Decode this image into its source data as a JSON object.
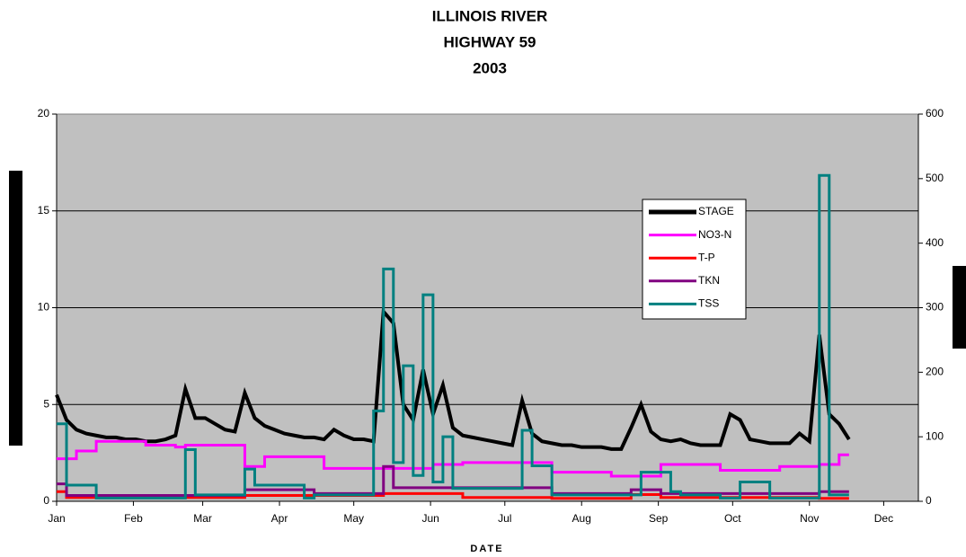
{
  "chart_data": {
    "type": "line",
    "title": [
      "ILLINOIS RIVER",
      "HIGHWAY 59",
      "2003"
    ],
    "xlabel": "DATE",
    "x": [
      0,
      4,
      8,
      12,
      16,
      20,
      24,
      28,
      32,
      36,
      40,
      44,
      48,
      52,
      56,
      60,
      64,
      68,
      72,
      76,
      80,
      84,
      88,
      92,
      96,
      100,
      104,
      108,
      112,
      116,
      120,
      124,
      128,
      132,
      136,
      140,
      144,
      148,
      152,
      156,
      160,
      164,
      168,
      172,
      176,
      180,
      184,
      188,
      192,
      196,
      200,
      204,
      208,
      212,
      216,
      220,
      224,
      228,
      232,
      236,
      240,
      244,
      248,
      252,
      256,
      260,
      264,
      268,
      272,
      276,
      280,
      284,
      288,
      292,
      296,
      300,
      304,
      308,
      312,
      316,
      320
    ],
    "xlim": [
      0,
      348
    ],
    "xticks": [
      {
        "value": 0,
        "label": "Jan"
      },
      {
        "value": 31,
        "label": "Feb"
      },
      {
        "value": 59,
        "label": "Mar"
      },
      {
        "value": 90,
        "label": "Apr"
      },
      {
        "value": 120,
        "label": "May"
      },
      {
        "value": 151,
        "label": "Jun"
      },
      {
        "value": 181,
        "label": "Jul"
      },
      {
        "value": 212,
        "label": "Aug"
      },
      {
        "value": 243,
        "label": "Sep"
      },
      {
        "value": 273,
        "label": "Oct"
      },
      {
        "value": 304,
        "label": "Nov"
      },
      {
        "value": 334,
        "label": "Dec"
      }
    ],
    "ylim": [
      0,
      20
    ],
    "yticks": [
      0,
      5,
      10,
      15,
      20
    ],
    "y2lim": [
      0,
      600
    ],
    "y2ticks": [
      0,
      100,
      200,
      300,
      400,
      500,
      600
    ],
    "grid": true,
    "series": [
      {
        "name": "STAGE",
        "color": "#000000",
        "step": false,
        "values": [
          5.5,
          4.2,
          3.7,
          3.5,
          3.4,
          3.3,
          3.3,
          3.2,
          3.2,
          3.1,
          3.1,
          3.2,
          3.4,
          5.8,
          4.3,
          4.3,
          4.0,
          3.7,
          3.6,
          5.6,
          4.3,
          3.9,
          3.7,
          3.5,
          3.4,
          3.3,
          3.3,
          3.2,
          3.7,
          3.4,
          3.2,
          3.2,
          3.1,
          9.8,
          9.2,
          5.0,
          4.2,
          6.8,
          4.5,
          6.0,
          3.8,
          3.4,
          3.3,
          3.2,
          3.1,
          3.0,
          2.9,
          5.2,
          3.5,
          3.1,
          3.0,
          2.9,
          2.9,
          2.8,
          2.8,
          2.8,
          2.7,
          2.7,
          3.8,
          5.0,
          3.6,
          3.2,
          3.1,
          3.2,
          3.0,
          2.9,
          2.9,
          2.9,
          4.5,
          4.2,
          3.2,
          3.1,
          3.0,
          3.0,
          3.0,
          3.5,
          3.1,
          8.6,
          4.5,
          4.0,
          3.2
        ]
      },
      {
        "name": "NO3-N",
        "color": "#ff00ff",
        "step": true,
        "values": [
          2.2,
          2.2,
          2.6,
          2.6,
          3.1,
          3.1,
          3.1,
          3.1,
          3.1,
          2.9,
          2.9,
          2.9,
          2.8,
          2.9,
          2.9,
          2.9,
          2.9,
          2.9,
          2.9,
          1.8,
          1.8,
          2.3,
          2.3,
          2.3,
          2.3,
          2.3,
          2.3,
          1.7,
          1.7,
          1.7,
          1.7,
          1.7,
          1.7,
          1.7,
          1.7,
          1.7,
          1.7,
          1.7,
          1.9,
          1.9,
          1.9,
          2.0,
          2.0,
          2.0,
          2.0,
          2.0,
          2.0,
          2.0,
          2.0,
          2.0,
          1.5,
          1.5,
          1.5,
          1.5,
          1.5,
          1.5,
          1.3,
          1.3,
          1.3,
          1.3,
          1.3,
          1.9,
          1.9,
          1.9,
          1.9,
          1.9,
          1.9,
          1.6,
          1.6,
          1.6,
          1.6,
          1.6,
          1.6,
          1.8,
          1.8,
          1.8,
          1.8,
          1.9,
          1.9,
          2.4,
          2.4
        ]
      },
      {
        "name": "T-P",
        "color": "#ff0000",
        "step": true,
        "values": [
          0.5,
          0.2,
          0.2,
          0.2,
          0.2,
          0.2,
          0.2,
          0.2,
          0.2,
          0.2,
          0.2,
          0.2,
          0.2,
          0.2,
          0.2,
          0.2,
          0.2,
          0.2,
          0.2,
          0.3,
          0.3,
          0.3,
          0.3,
          0.3,
          0.3,
          0.3,
          0.3,
          0.3,
          0.3,
          0.3,
          0.3,
          0.3,
          0.3,
          0.4,
          0.4,
          0.4,
          0.4,
          0.4,
          0.4,
          0.4,
          0.4,
          0.2,
          0.2,
          0.2,
          0.2,
          0.2,
          0.2,
          0.2,
          0.2,
          0.2,
          0.15,
          0.15,
          0.15,
          0.15,
          0.15,
          0.15,
          0.15,
          0.15,
          0.35,
          0.35,
          0.35,
          0.2,
          0.2,
          0.2,
          0.2,
          0.2,
          0.2,
          0.2,
          0.2,
          0.2,
          0.2,
          0.2,
          0.2,
          0.2,
          0.2,
          0.2,
          0.2,
          0.15,
          0.15,
          0.15,
          0.15
        ]
      },
      {
        "name": "TKN",
        "color": "#800080",
        "step": true,
        "values": [
          0.9,
          0.3,
          0.3,
          0.3,
          0.3,
          0.3,
          0.3,
          0.3,
          0.3,
          0.3,
          0.3,
          0.3,
          0.3,
          0.3,
          0.3,
          0.3,
          0.3,
          0.3,
          0.3,
          0.6,
          0.6,
          0.6,
          0.6,
          0.6,
          0.6,
          0.6,
          0.4,
          0.4,
          0.4,
          0.4,
          0.4,
          0.4,
          0.4,
          1.8,
          0.7,
          0.7,
          0.7,
          0.7,
          0.7,
          0.7,
          0.7,
          0.7,
          0.7,
          0.7,
          0.7,
          0.7,
          0.7,
          0.7,
          0.7,
          0.7,
          0.4,
          0.4,
          0.4,
          0.4,
          0.4,
          0.4,
          0.4,
          0.4,
          0.6,
          0.6,
          0.6,
          0.4,
          0.4,
          0.4,
          0.4,
          0.4,
          0.4,
          0.4,
          0.4,
          0.4,
          0.4,
          0.4,
          0.4,
          0.4,
          0.4,
          0.4,
          0.4,
          0.5,
          0.5,
          0.5,
          0.5
        ]
      },
      {
        "name": "TSS",
        "color": "#008080",
        "step": true,
        "axis": "y2",
        "values": [
          120,
          25,
          25,
          25,
          5,
          5,
          5,
          5,
          5,
          5,
          5,
          5,
          5,
          80,
          10,
          10,
          10,
          10,
          10,
          50,
          25,
          25,
          25,
          25,
          25,
          5,
          10,
          10,
          10,
          10,
          10,
          10,
          140,
          360,
          60,
          210,
          40,
          320,
          30,
          100,
          20,
          20,
          20,
          20,
          20,
          20,
          20,
          110,
          55,
          55,
          10,
          10,
          10,
          10,
          10,
          10,
          10,
          10,
          10,
          45,
          45,
          45,
          15,
          10,
          10,
          10,
          10,
          5,
          5,
          30,
          30,
          30,
          5,
          5,
          5,
          5,
          5,
          505,
          10,
          10,
          10
        ]
      }
    ]
  }
}
